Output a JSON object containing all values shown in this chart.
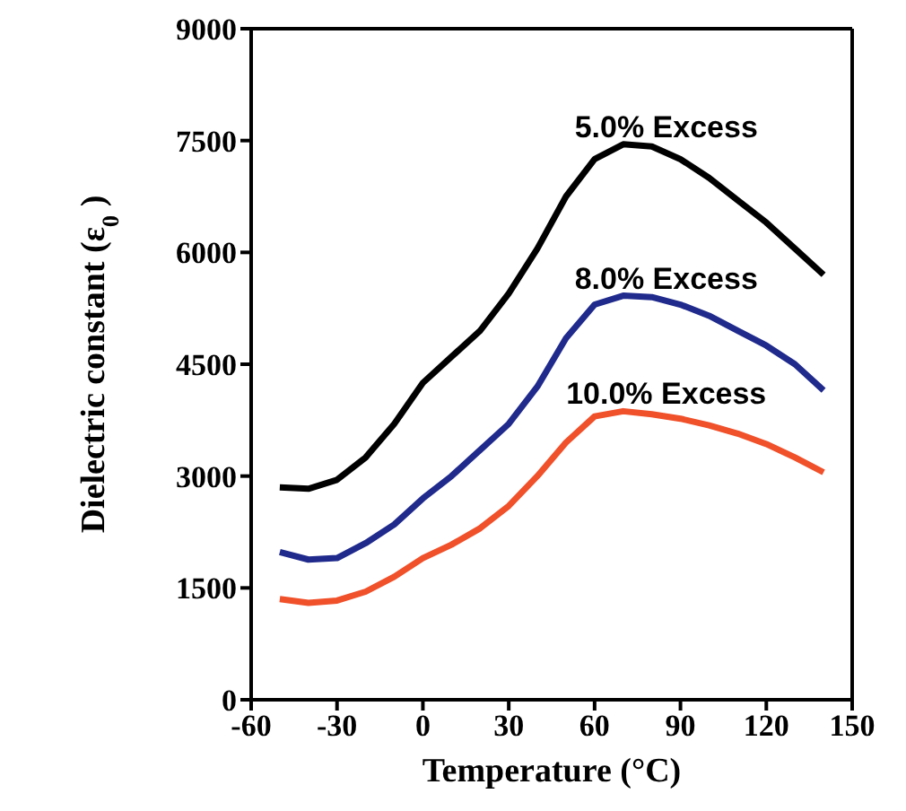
{
  "chart_data": {
    "type": "line",
    "xlabel": "Temperature (°C)",
    "ylabel": "Dielectric constant (ε$_{0}$)",
    "x": [
      -50,
      -40,
      -30,
      -20,
      -10,
      0,
      10,
      20,
      30,
      40,
      50,
      60,
      70,
      80,
      90,
      100,
      110,
      120,
      130,
      140
    ],
    "series": [
      {
        "name": "5.0% Excess",
        "color": "#000000",
        "values": [
          2850,
          2830,
          2950,
          3250,
          3700,
          4250,
          4600,
          4950,
          5450,
          6050,
          6750,
          7250,
          7450,
          7420,
          7250,
          7000,
          6700,
          6400,
          6050,
          5700
        ]
      },
      {
        "name": "8.0% Excess",
        "color": "#1f2a8c",
        "values": [
          1980,
          1880,
          1900,
          2100,
          2350,
          2700,
          3000,
          3350,
          3700,
          4200,
          4850,
          5300,
          5420,
          5400,
          5300,
          5150,
          4950,
          4750,
          4500,
          4150
        ]
      },
      {
        "name": "10.0% Excess",
        "color": "#f0502a",
        "values": [
          1350,
          1300,
          1330,
          1450,
          1650,
          1900,
          2080,
          2300,
          2600,
          3000,
          3450,
          3800,
          3870,
          3830,
          3770,
          3680,
          3570,
          3430,
          3250,
          3050
        ]
      }
    ],
    "xlim": [
      -60,
      150
    ],
    "xticks": [
      -60,
      -30,
      0,
      30,
      60,
      90,
      120,
      150
    ],
    "ylim": [
      0,
      9000
    ],
    "yticks": [
      0,
      1500,
      3000,
      4500,
      6000,
      7500,
      9000
    ],
    "grid": false,
    "legend": false,
    "marker": "none",
    "line_style": "solid"
  }
}
